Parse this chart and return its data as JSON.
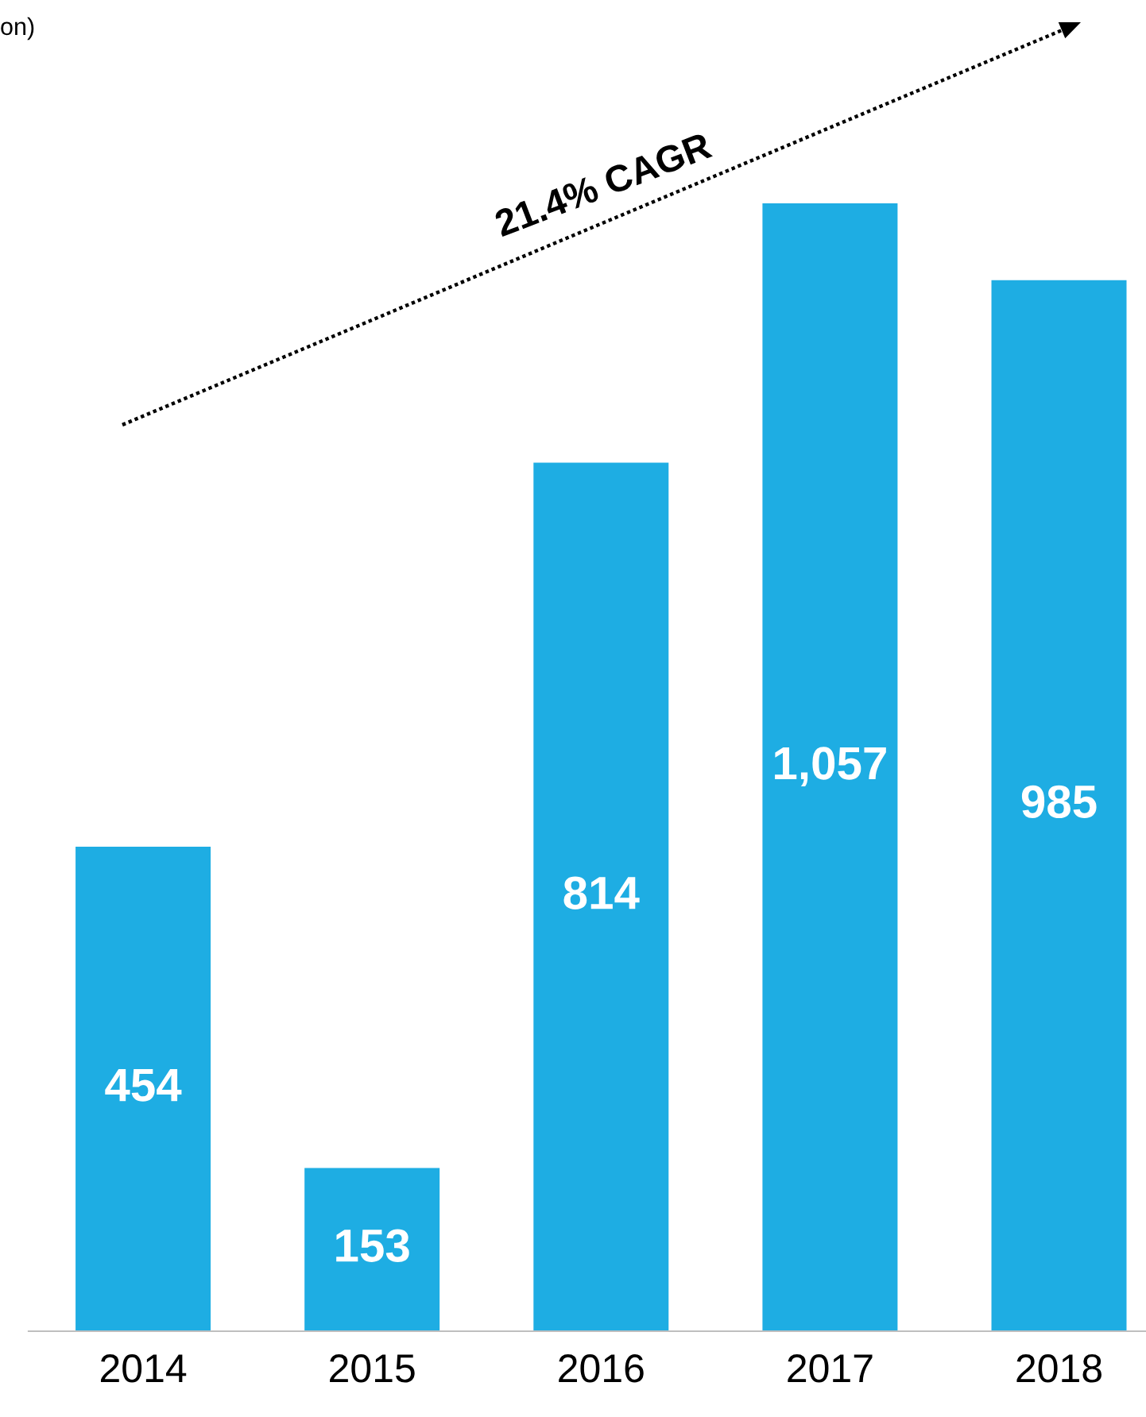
{
  "chart_data": {
    "type": "bar",
    "subtitle": "on)",
    "categories": [
      "2014",
      "2015",
      "2016",
      "2017",
      "2018"
    ],
    "values": [
      454,
      153,
      814,
      1057,
      985
    ],
    "color": "#1eade3",
    "data_labels": true,
    "value_labels": [
      "454",
      "153",
      "814",
      "1,057",
      "985"
    ],
    "annotations": [
      "21.4% CAGR"
    ],
    "grid": false,
    "legend": false
  }
}
